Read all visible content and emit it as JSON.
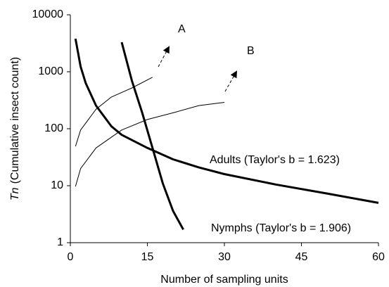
{
  "chart_data": {
    "type": "line",
    "x_label": "Number of sampling units",
    "y_label": {
      "symbol": "Tn",
      "text": "(Cumulative insect count)"
    },
    "xlim": [
      0,
      60
    ],
    "xticks": [
      0,
      15,
      30,
      45,
      60
    ],
    "ylim": [
      1,
      10000
    ],
    "yticks": [
      1,
      10,
      100,
      1000,
      10000
    ],
    "y_scale": "log",
    "grid": false,
    "series": [
      {
        "name": "Adults (Taylor's b = 1.623)",
        "color": "#000000",
        "width": 3,
        "x": [
          1,
          2,
          3,
          5,
          8,
          10,
          15,
          20,
          25,
          30,
          40,
          50,
          60
        ],
        "values": [
          3800,
          1230,
          630,
          255,
          110,
          78,
          46,
          29,
          21,
          16,
          10.5,
          7.3,
          5
        ]
      },
      {
        "name": "Nymphs (Taylor's b = 1.906)",
        "color": "#000000",
        "width": 3,
        "x": [
          10,
          12,
          14,
          16,
          18,
          20,
          22
        ],
        "values": [
          3300,
          690,
          190,
          46,
          11,
          3.6,
          1.7
        ]
      },
      {
        "name": "A",
        "color": "#000000",
        "width": 1,
        "x": [
          1,
          2,
          5,
          8,
          12,
          16
        ],
        "values": [
          49,
          95,
          220,
          360,
          520,
          800
        ]
      },
      {
        "name": "B",
        "color": "#000000",
        "width": 1,
        "x": [
          1,
          2,
          5,
          10,
          15,
          20,
          25,
          30
        ],
        "values": [
          9.7,
          20,
          46,
          95,
          145,
          190,
          255,
          290
        ]
      }
    ]
  }
}
